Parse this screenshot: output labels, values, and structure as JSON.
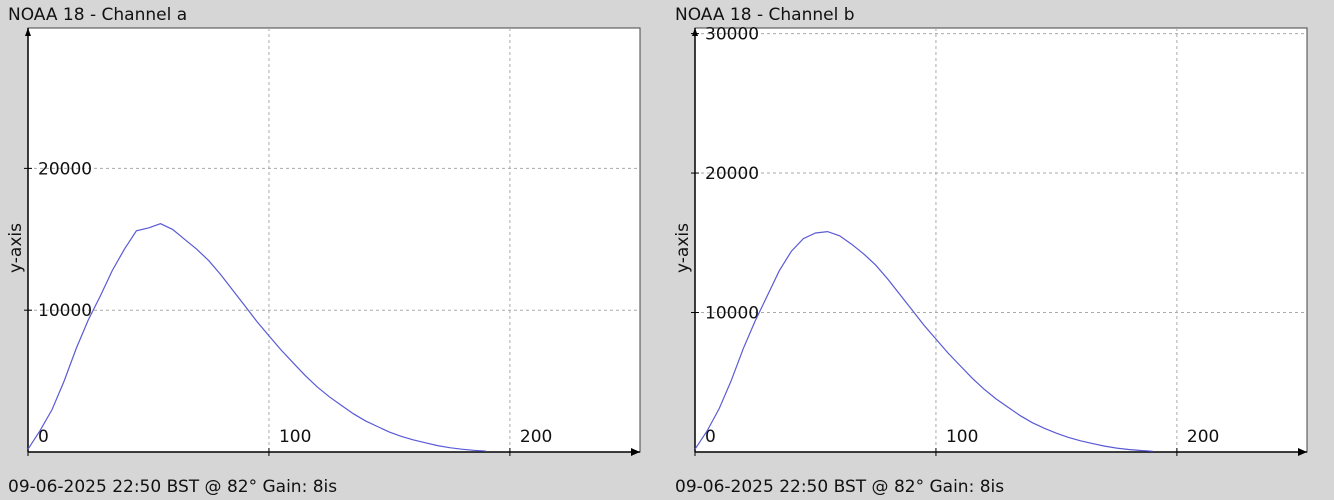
{
  "chart_data": [
    {
      "type": "line",
      "title": "NOAA 18 - Channel a",
      "y_label": "y-axis",
      "footer": "09-06-2025 22:50 BST @ 82° Gain: 8is",
      "x": [
        0,
        5,
        10,
        15,
        20,
        25,
        30,
        35,
        40,
        45,
        50,
        55,
        60,
        65,
        70,
        75,
        80,
        85,
        90,
        95,
        100,
        105,
        110,
        115,
        120,
        125,
        130,
        135,
        140,
        145,
        150,
        155,
        160,
        165,
        170,
        175,
        180,
        185,
        190
      ],
      "values": [
        200,
        1500,
        3000,
        5000,
        7300,
        9300,
        11000,
        12800,
        14300,
        15600,
        15800,
        16100,
        15700,
        15000,
        14300,
        13500,
        12500,
        11400,
        10300,
        9200,
        8200,
        7200,
        6300,
        5400,
        4600,
        3900,
        3300,
        2700,
        2200,
        1800,
        1400,
        1100,
        850,
        650,
        450,
        300,
        200,
        120,
        60
      ],
      "color": "#5a5ad6",
      "xlim": [
        0,
        254
      ],
      "ylim": [
        0,
        29900
      ],
      "xticks": [
        0,
        100,
        200
      ],
      "yticks": [
        10000,
        20000
      ],
      "grid": true
    },
    {
      "type": "line",
      "title": "NOAA 18 - Channel b",
      "y_label": "y-axis",
      "footer": "09-06-2025 22:50 BST @ 82° Gain: 8is",
      "x": [
        0,
        5,
        10,
        15,
        20,
        25,
        30,
        35,
        40,
        45,
        50,
        55,
        60,
        65,
        70,
        75,
        80,
        85,
        90,
        95,
        100,
        105,
        110,
        115,
        120,
        125,
        130,
        135,
        140,
        145,
        150,
        155,
        160,
        165,
        170,
        175,
        180,
        185,
        190
      ],
      "values": [
        200,
        1500,
        3100,
        5100,
        7400,
        9400,
        11200,
        13000,
        14400,
        15300,
        15700,
        15800,
        15500,
        14900,
        14200,
        13400,
        12400,
        11300,
        10200,
        9100,
        8100,
        7100,
        6200,
        5300,
        4500,
        3800,
        3200,
        2600,
        2100,
        1700,
        1350,
        1050,
        800,
        600,
        420,
        280,
        180,
        110,
        50
      ],
      "color": "#5a5ad6",
      "xlim": [
        0,
        254
      ],
      "ylim": [
        0,
        30400
      ],
      "xticks": [
        0,
        100,
        200
      ],
      "yticks": [
        10000,
        20000,
        30000
      ],
      "grid": true
    }
  ]
}
